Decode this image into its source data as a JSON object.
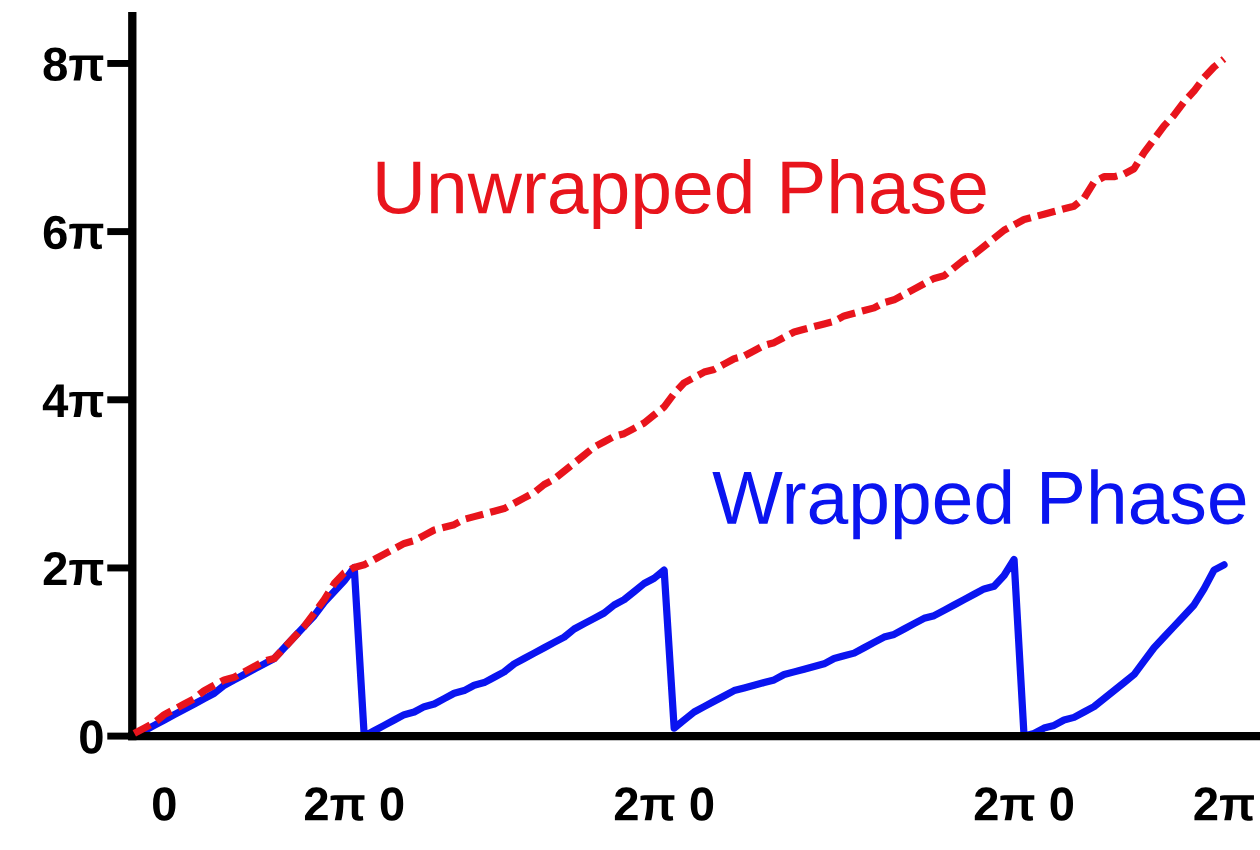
{
  "chart_data": {
    "type": "line",
    "categories": [
      null,
      null,
      null,
      "0",
      null,
      null,
      null,
      null,
      null,
      null,
      null,
      null,
      null,
      null,
      null,
      null,
      null,
      null,
      null,
      null,
      null,
      null,
      "2π 0",
      null,
      null,
      null,
      null,
      null,
      null,
      null,
      null,
      null,
      null,
      null,
      null,
      null,
      null,
      null,
      null,
      null,
      null,
      null,
      null,
      null,
      null,
      null,
      null,
      null,
      null,
      null,
      null,
      null,
      null,
      "2π 0",
      null,
      null,
      null,
      null,
      null,
      null,
      null,
      null,
      null,
      null,
      null,
      null,
      null,
      null,
      null,
      null,
      null,
      null,
      null,
      null,
      null,
      null,
      null,
      null,
      null,
      null,
      null,
      null,
      null,
      null,
      null,
      null,
      null,
      null,
      null,
      "2π 0",
      null,
      null,
      null,
      null,
      null,
      null,
      null,
      null,
      null,
      null,
      null,
      null,
      null,
      null,
      null,
      null,
      null,
      null,
      null,
      "2π"
    ],
    "ylim": [
      0,
      26.9
    ],
    "yticks": [
      {
        "value": 0,
        "label": "0"
      },
      {
        "value": 6.283,
        "label": "2π"
      },
      {
        "value": 12.566,
        "label": "4π"
      },
      {
        "value": 18.85,
        "label": "6π"
      },
      {
        "value": 25.133,
        "label": "8π"
      }
    ],
    "grid": false,
    "legend": false,
    "marker": "none",
    "series": [
      {
        "name": "Unwrapped Phase",
        "color": "#e8141c",
        "line_style": "dashed",
        "values": [
          0.1,
          0.3,
          0.5,
          0.8,
          1.0,
          1.2,
          1.4,
          1.7,
          1.9,
          2.1,
          2.2,
          2.4,
          2.6,
          2.8,
          2.9,
          3.3,
          3.7,
          4.1,
          4.6,
          5.1,
          5.7,
          6.1,
          6.3,
          6.4,
          6.6,
          6.8,
          7.0,
          7.2,
          7.3,
          7.5,
          7.7,
          7.8,
          7.9,
          8.1,
          8.2,
          8.3,
          8.4,
          8.5,
          8.7,
          8.9,
          9.1,
          9.4,
          9.6,
          9.9,
          10.2,
          10.5,
          10.8,
          11.0,
          11.2,
          11.3,
          11.5,
          11.7,
          12.0,
          12.3,
          12.8,
          13.2,
          13.4,
          13.6,
          13.7,
          13.9,
          14.1,
          14.2,
          14.4,
          14.6,
          14.7,
          14.9,
          15.1,
          15.2,
          15.3,
          15.4,
          15.5,
          15.7,
          15.8,
          15.9,
          16.0,
          16.2,
          16.3,
          16.5,
          16.7,
          16.9,
          17.1,
          17.2,
          17.5,
          17.8,
          18.0,
          18.3,
          18.6,
          18.9,
          19.1,
          19.3,
          19.4,
          19.5,
          19.6,
          19.7,
          19.8,
          20.1,
          20.7,
          20.9,
          20.9,
          21.0,
          21.2,
          21.8,
          22.3,
          22.8,
          23.2,
          23.7,
          24.1,
          24.6,
          25.0,
          25.3
        ]
      },
      {
        "name": "Wrapped Phase",
        "color": "#0a14f0",
        "line_style": "solid",
        "values": [
          0.0,
          0.2,
          0.4,
          0.6,
          0.8,
          1.0,
          1.2,
          1.4,
          1.6,
          1.9,
          2.1,
          2.3,
          2.5,
          2.7,
          2.9,
          3.3,
          3.7,
          4.1,
          4.5,
          5.0,
          5.4,
          5.8,
          6.3,
          0.0,
          0.2,
          0.4,
          0.6,
          0.8,
          0.9,
          1.1,
          1.2,
          1.4,
          1.6,
          1.7,
          1.9,
          2.0,
          2.2,
          2.4,
          2.7,
          2.9,
          3.1,
          3.3,
          3.5,
          3.7,
          4.0,
          4.2,
          4.4,
          4.6,
          4.9,
          5.1,
          5.4,
          5.7,
          5.9,
          6.2,
          0.3,
          0.6,
          0.9,
          1.1,
          1.3,
          1.5,
          1.7,
          1.8,
          1.9,
          2.0,
          2.1,
          2.3,
          2.4,
          2.5,
          2.6,
          2.7,
          2.9,
          3.0,
          3.1,
          3.3,
          3.5,
          3.7,
          3.8,
          4.0,
          4.2,
          4.4,
          4.5,
          4.7,
          4.9,
          5.1,
          5.3,
          5.5,
          5.6,
          6.0,
          6.6,
          0.0,
          0.1,
          0.3,
          0.4,
          0.6,
          0.7,
          0.9,
          1.1,
          1.4,
          1.7,
          2.0,
          2.3,
          2.8,
          3.3,
          3.7,
          4.1,
          4.5,
          4.9,
          5.5,
          6.2,
          6.4
        ]
      }
    ]
  }
}
